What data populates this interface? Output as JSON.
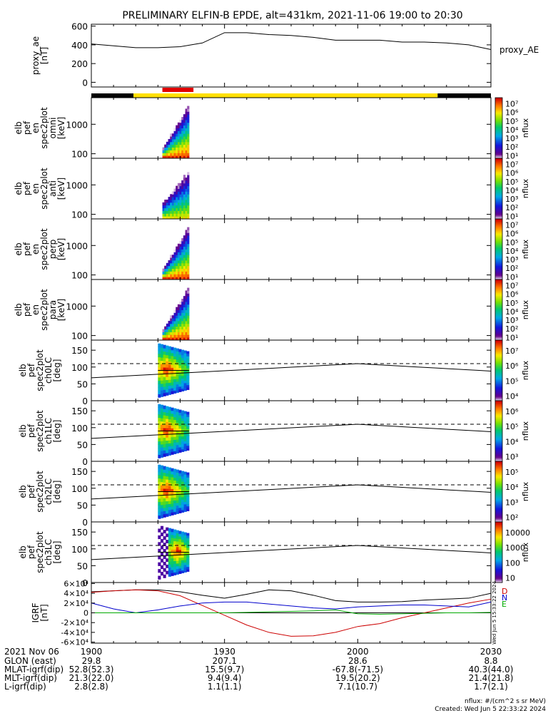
{
  "title": "PRELIMINARY ELFIN-B EPDE, alt=431km, 2021-11-06 19:00 to 20:30",
  "colors": {
    "black": "#000000",
    "yellow": "#ffe000",
    "red": "#e00000",
    "igrf_d": "#cc0000",
    "igrf_n": "#0000cc",
    "igrf_f": "#00aa00"
  },
  "chart_data": [
    {
      "type": "line",
      "id": "proxy_ae",
      "ylabel": "proxy_ae\n[nT]",
      "legend": "proxy_AE",
      "ylim": [
        -50,
        620
      ],
      "yticks": [
        0,
        200,
        400,
        600
      ],
      "x_minutes": [
        0,
        5,
        10,
        15,
        20,
        25,
        30,
        35,
        40,
        45,
        50,
        55,
        60,
        65,
        70,
        75,
        80,
        85,
        90
      ],
      "values": [
        410,
        390,
        370,
        370,
        380,
        420,
        530,
        530,
        510,
        500,
        480,
        450,
        450,
        450,
        430,
        430,
        420,
        400,
        350
      ]
    },
    {
      "type": "bar",
      "id": "phase_bar",
      "segments": [
        {
          "start": 0,
          "end": 9.5,
          "color": "black"
        },
        {
          "start": 9.5,
          "end": 78,
          "color": "yellow"
        },
        {
          "start": 78,
          "end": 90,
          "color": "black"
        }
      ],
      "marker": {
        "start": 16,
        "end": 23,
        "color": "red"
      }
    },
    {
      "type": "heatmap",
      "id": "spec-omni",
      "ylabel": [
        "elb",
        "pef",
        "en",
        "spec2plot",
        "omni",
        "[keV]"
      ],
      "scale": "log",
      "ylim": [
        70,
        8000
      ],
      "yticks": [
        100,
        1000
      ],
      "ytick_labels": [
        "100",
        "1000"
      ],
      "cbar_label": "nflux",
      "cbar_ticks": [
        "10¹",
        "10²",
        "10³",
        "10⁴",
        "10⁵",
        "10⁶",
        "10⁷"
      ],
      "x_range_minutes": [
        16,
        22
      ]
    },
    {
      "type": "heatmap",
      "id": "spec-anti",
      "ylabel": [
        "elb",
        "pef",
        "en",
        "spec2plot",
        "anti",
        "[keV]"
      ],
      "scale": "log",
      "ylim": [
        70,
        8000
      ],
      "yticks": [
        100,
        1000
      ],
      "ytick_labels": [
        "100",
        "1000"
      ],
      "cbar_label": "nflux",
      "cbar_ticks": [
        "10¹",
        "10²",
        "10³",
        "10⁴",
        "10⁵",
        "10⁶",
        "10⁷"
      ],
      "x_range_minutes": [
        16,
        22
      ]
    },
    {
      "type": "heatmap",
      "id": "spec-perp",
      "ylabel": [
        "elb",
        "pef",
        "en",
        "spec2plot",
        "perp",
        "[keV]"
      ],
      "scale": "log",
      "ylim": [
        70,
        8000
      ],
      "yticks": [
        100,
        1000
      ],
      "ytick_labels": [
        "100",
        "1000"
      ],
      "cbar_label": "nflux",
      "cbar_ticks": [
        "10¹",
        "10²",
        "10³",
        "10⁴",
        "10⁵",
        "10⁶",
        "10⁷"
      ],
      "x_range_minutes": [
        16,
        22
      ]
    },
    {
      "type": "heatmap",
      "id": "spec-para",
      "ylabel": [
        "elb",
        "pef",
        "en",
        "spec2plot",
        "para",
        "[keV]"
      ],
      "scale": "log",
      "ylim": [
        70,
        8000
      ],
      "yticks": [
        100,
        1000
      ],
      "ytick_labels": [
        "100",
        "1000"
      ],
      "cbar_label": "nflux",
      "cbar_ticks": [
        "10¹",
        "10²",
        "10³",
        "10⁴",
        "10⁵",
        "10⁶",
        "10⁷"
      ],
      "x_range_minutes": [
        16,
        22
      ]
    },
    {
      "type": "heatmap",
      "id": "pa-ch0",
      "ylabel": [
        "elb",
        "pef",
        "spec2plot",
        "ch0LC",
        "[deg]"
      ],
      "ylim": [
        0,
        180
      ],
      "yticks": [
        0,
        50,
        100,
        150
      ],
      "ytick_labels": [
        "0",
        "50",
        "100",
        "150"
      ],
      "cbar_label": "nflux",
      "cbar_ticks": [
        "10⁴",
        "10⁵",
        "10⁶",
        "10⁷"
      ],
      "dashed_y": 110,
      "solid_y_start": 68,
      "solid_y_peak": 110,
      "x_range_minutes": [
        15,
        22
      ]
    },
    {
      "type": "heatmap",
      "id": "pa-ch1",
      "ylabel": [
        "elb",
        "pef",
        "spec2plot",
        "ch1LC",
        "[deg]"
      ],
      "ylim": [
        0,
        180
      ],
      "yticks": [
        0,
        50,
        100,
        150
      ],
      "ytick_labels": [
        "0",
        "50",
        "100",
        "150"
      ],
      "cbar_label": "nflux",
      "cbar_ticks": [
        "10³",
        "10⁴",
        "10⁵",
        "10⁶"
      ],
      "dashed_y": 110,
      "solid_y_start": 68,
      "solid_y_peak": 110,
      "x_range_minutes": [
        15,
        22
      ]
    },
    {
      "type": "heatmap",
      "id": "pa-ch2",
      "ylabel": [
        "elb",
        "pef",
        "spec2plot",
        "ch2LC",
        "[deg]"
      ],
      "ylim": [
        0,
        180
      ],
      "yticks": [
        0,
        50,
        100,
        150
      ],
      "ytick_labels": [
        "0",
        "50",
        "100",
        "150"
      ],
      "cbar_label": "nflux",
      "cbar_ticks": [
        "10²",
        "10³",
        "10⁴",
        "10⁵"
      ],
      "dashed_y": 110,
      "solid_y_start": 68,
      "solid_y_peak": 110,
      "x_range_minutes": [
        15,
        22
      ]
    },
    {
      "type": "heatmap",
      "id": "pa-ch3",
      "ylabel": [
        "elb",
        "pef",
        "spec2plot",
        "ch3LC",
        "[deg]"
      ],
      "ylim": [
        0,
        180
      ],
      "yticks": [
        0,
        50,
        100,
        150
      ],
      "ytick_labels": [
        "0",
        "50",
        "100",
        "150"
      ],
      "cbar_label": "nflux",
      "cbar_ticks": [
        "10",
        "100",
        "1000",
        "10000"
      ],
      "dashed_y": 110,
      "solid_y_start": 68,
      "solid_y_peak": 110,
      "x_range_minutes": [
        15,
        22
      ]
    },
    {
      "type": "line",
      "id": "igrf",
      "ylabel": "IGRF\n[nT]",
      "ylim": [
        -62000,
        62000
      ],
      "yticks": [
        -60000,
        -40000,
        -20000,
        0,
        20000,
        40000,
        60000
      ],
      "ytick_labels": [
        "-6×10⁴",
        "-4×10⁴",
        "-2×10⁴",
        "0",
        "2×10⁴",
        "4×10⁴",
        "6×10⁴"
      ],
      "legend": [
        "D",
        "N",
        "E"
      ],
      "stamp": "Wed Jun  5 15:33:22 2024",
      "x_minutes": [
        0,
        5,
        10,
        15,
        20,
        25,
        30,
        35,
        40,
        45,
        50,
        55,
        60,
        65,
        70,
        75,
        80,
        85,
        90
      ],
      "series": [
        {
          "color": "black",
          "values": [
            43000,
            45000,
            47000,
            47000,
            43000,
            36000,
            30000,
            38000,
            47000,
            45000,
            36000,
            25000,
            22000,
            22000,
            23000,
            26000,
            28000,
            30000,
            40000
          ]
        },
        {
          "color": "red",
          "values": [
            42000,
            45000,
            47000,
            45000,
            35000,
            15000,
            -5000,
            -25000,
            -40000,
            -48000,
            -47000,
            -40000,
            -28000,
            -22000,
            -10000,
            0,
            10000,
            20000,
            28000
          ]
        },
        {
          "color": "blue",
          "values": [
            20000,
            8000,
            0,
            6000,
            14000,
            20000,
            22000,
            22000,
            18000,
            14000,
            10000,
            8000,
            12000,
            14000,
            16000,
            16000,
            14000,
            12000,
            22000
          ]
        },
        {
          "color": "green",
          "values": [
            0,
            0,
            0,
            0,
            0,
            0,
            0,
            1000,
            2000,
            3000,
            4000,
            6000,
            -2000,
            -3000,
            -2000,
            -1000,
            0,
            0,
            1000
          ]
        }
      ]
    }
  ],
  "x_axis": {
    "range_minutes": [
      0,
      90
    ],
    "ticks_minutes": [
      0,
      30,
      60,
      90
    ],
    "tick_labels": [
      "1900",
      "1930",
      "2000",
      "2030"
    ],
    "row_labels": [
      "2021 Nov 06",
      "GLON (east)",
      "MLAT-igrf(dip)",
      "MLT-igrf(dip)",
      "L-igrf(dip)"
    ],
    "columns": [
      [
        "",
        "29.8",
        "52.8(52.3)",
        "21.3(22.0)",
        "2.8(2.8)"
      ],
      [
        "",
        "207.1",
        "15.5(9.7)",
        "9.4(9.4)",
        "1.1(1.1)"
      ],
      [
        "",
        "28.6",
        "-67.8(-71.5)",
        "19.5(20.2)",
        "7.1(10.7)"
      ],
      [
        "",
        "8.8",
        "40.3(44.0)",
        "21.4(21.8)",
        "1.7(2.1)"
      ]
    ]
  },
  "footer": {
    "units": "nflux: #/(cm^2 s sr MeV)",
    "created": "Created: Wed Jun  5 22:33:22 2024"
  }
}
